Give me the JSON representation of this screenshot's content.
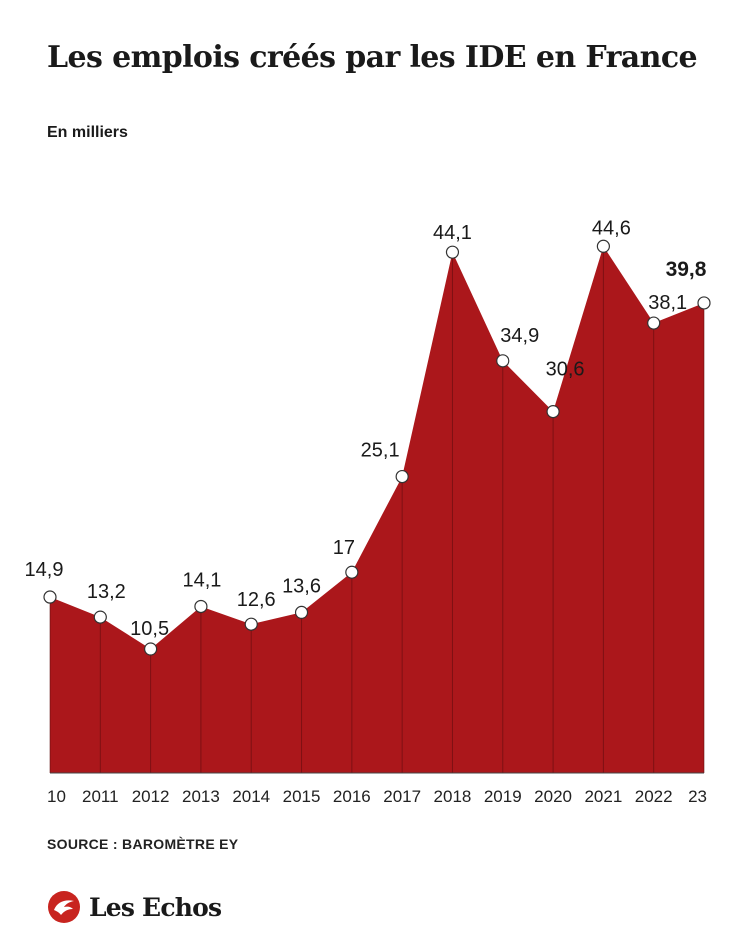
{
  "title": "Les emplois créés par les IDE en France",
  "subtitle": "En milliers",
  "source": "SOURCE : BAROMÈTRE EY",
  "brand": {
    "name": "Les Echos",
    "logo_icon": "les-echos-logo-icon",
    "color": "#c8241f"
  },
  "chart_data": {
    "type": "area",
    "x": [
      "10",
      "2011",
      "2012",
      "2013",
      "2014",
      "2015",
      "2016",
      "2017",
      "2018",
      "2019",
      "2020",
      "2021",
      "2022",
      "23"
    ],
    "values": [
      14.9,
      13.2,
      10.5,
      14.1,
      12.6,
      13.6,
      17,
      25.1,
      44.1,
      34.9,
      30.6,
      44.6,
      38.1,
      39.8
    ],
    "data_labels": [
      "14,9",
      "13,2",
      "10,5",
      "14,1",
      "12,6",
      "13,6",
      "17",
      "25,1",
      "44,1",
      "34,9",
      "30,6",
      "44,6",
      "38,1",
      "39,8"
    ],
    "highlight_index": 13,
    "ylim": [
      0,
      50
    ],
    "fill_color": "#ab171b",
    "grid": false,
    "title": "Les emplois créés par les IDE en France",
    "ylabel": "En milliers"
  }
}
